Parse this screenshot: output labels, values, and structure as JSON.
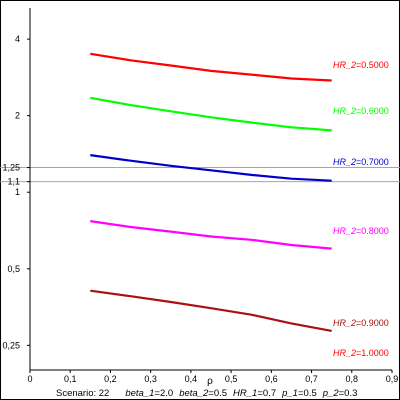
{
  "chart_data": {
    "type": "line",
    "x_scale": "linear",
    "y_scale": "log",
    "xlim": [
      0,
      0.9
    ],
    "ylim": [
      0.2,
      5.3
    ],
    "x_ticks": [
      0,
      0.1,
      0.2,
      0.3,
      0.4,
      0.5,
      0.6,
      0.7,
      0.8,
      0.9
    ],
    "x_tick_labels": [
      "0",
      "0,1",
      "0,2",
      "0,3",
      "0,4",
      "0,5",
      "0,6",
      "0,7",
      "0,8",
      "0,9"
    ],
    "y_ticks": [
      0.25,
      0.5,
      1,
      1.1,
      1.25,
      2,
      4
    ],
    "y_tick_labels": [
      "0,25",
      "0,5",
      "1",
      "1,1",
      "1,25",
      "2",
      "4"
    ],
    "xlabel": "ρ",
    "ylabel": "",
    "reference_lines_y": [
      1.1,
      1.25
    ],
    "series": [
      {
        "name": "HR_2",
        "value_label": "0.5000",
        "color": "#ff0000",
        "x": [
          0.15,
          0.25,
          0.35,
          0.45,
          0.55,
          0.65,
          0.75
        ],
        "y": [
          3.5,
          3.3,
          3.15,
          3.0,
          2.9,
          2.8,
          2.75
        ]
      },
      {
        "name": "HR_2",
        "value_label": "0.6000",
        "color": "#00ff00",
        "x": [
          0.15,
          0.25,
          0.35,
          0.45,
          0.55,
          0.65,
          0.75
        ],
        "y": [
          2.35,
          2.2,
          2.08,
          1.97,
          1.88,
          1.8,
          1.75
        ]
      },
      {
        "name": "HR_2",
        "value_label": "0.7000",
        "color": "#0000cc",
        "x": [
          0.15,
          0.25,
          0.35,
          0.45,
          0.55,
          0.65,
          0.75
        ],
        "y": [
          1.4,
          1.33,
          1.27,
          1.22,
          1.17,
          1.13,
          1.11
        ]
      },
      {
        "name": "HR_2",
        "value_label": "0.8000",
        "color": "#ff00ff",
        "x": [
          0.15,
          0.25,
          0.35,
          0.45,
          0.55,
          0.65,
          0.75
        ],
        "y": [
          0.77,
          0.73,
          0.7,
          0.67,
          0.65,
          0.62,
          0.6
        ]
      },
      {
        "name": "HR_2",
        "value_label": "0.9000",
        "color": "#aa1111",
        "x": [
          0.15,
          0.25,
          0.35,
          0.45,
          0.55,
          0.65,
          0.75
        ],
        "y": [
          0.41,
          0.39,
          0.37,
          0.35,
          0.33,
          0.305,
          0.285
        ]
      },
      {
        "name": "HR_2",
        "value_label": "1.0000",
        "color": "#ff0000",
        "x": [],
        "y": []
      }
    ],
    "caption": {
      "scenario": "Scenario: 22",
      "params": [
        {
          "name": "beta_1",
          "value": "2.0"
        },
        {
          "name": "beta_2",
          "value": "0.5"
        },
        {
          "name": "HR_1",
          "value": "0.7"
        },
        {
          "name": "p_1",
          "value": "0.5"
        },
        {
          "name": "p_2",
          "value": "0.3"
        }
      ]
    }
  }
}
